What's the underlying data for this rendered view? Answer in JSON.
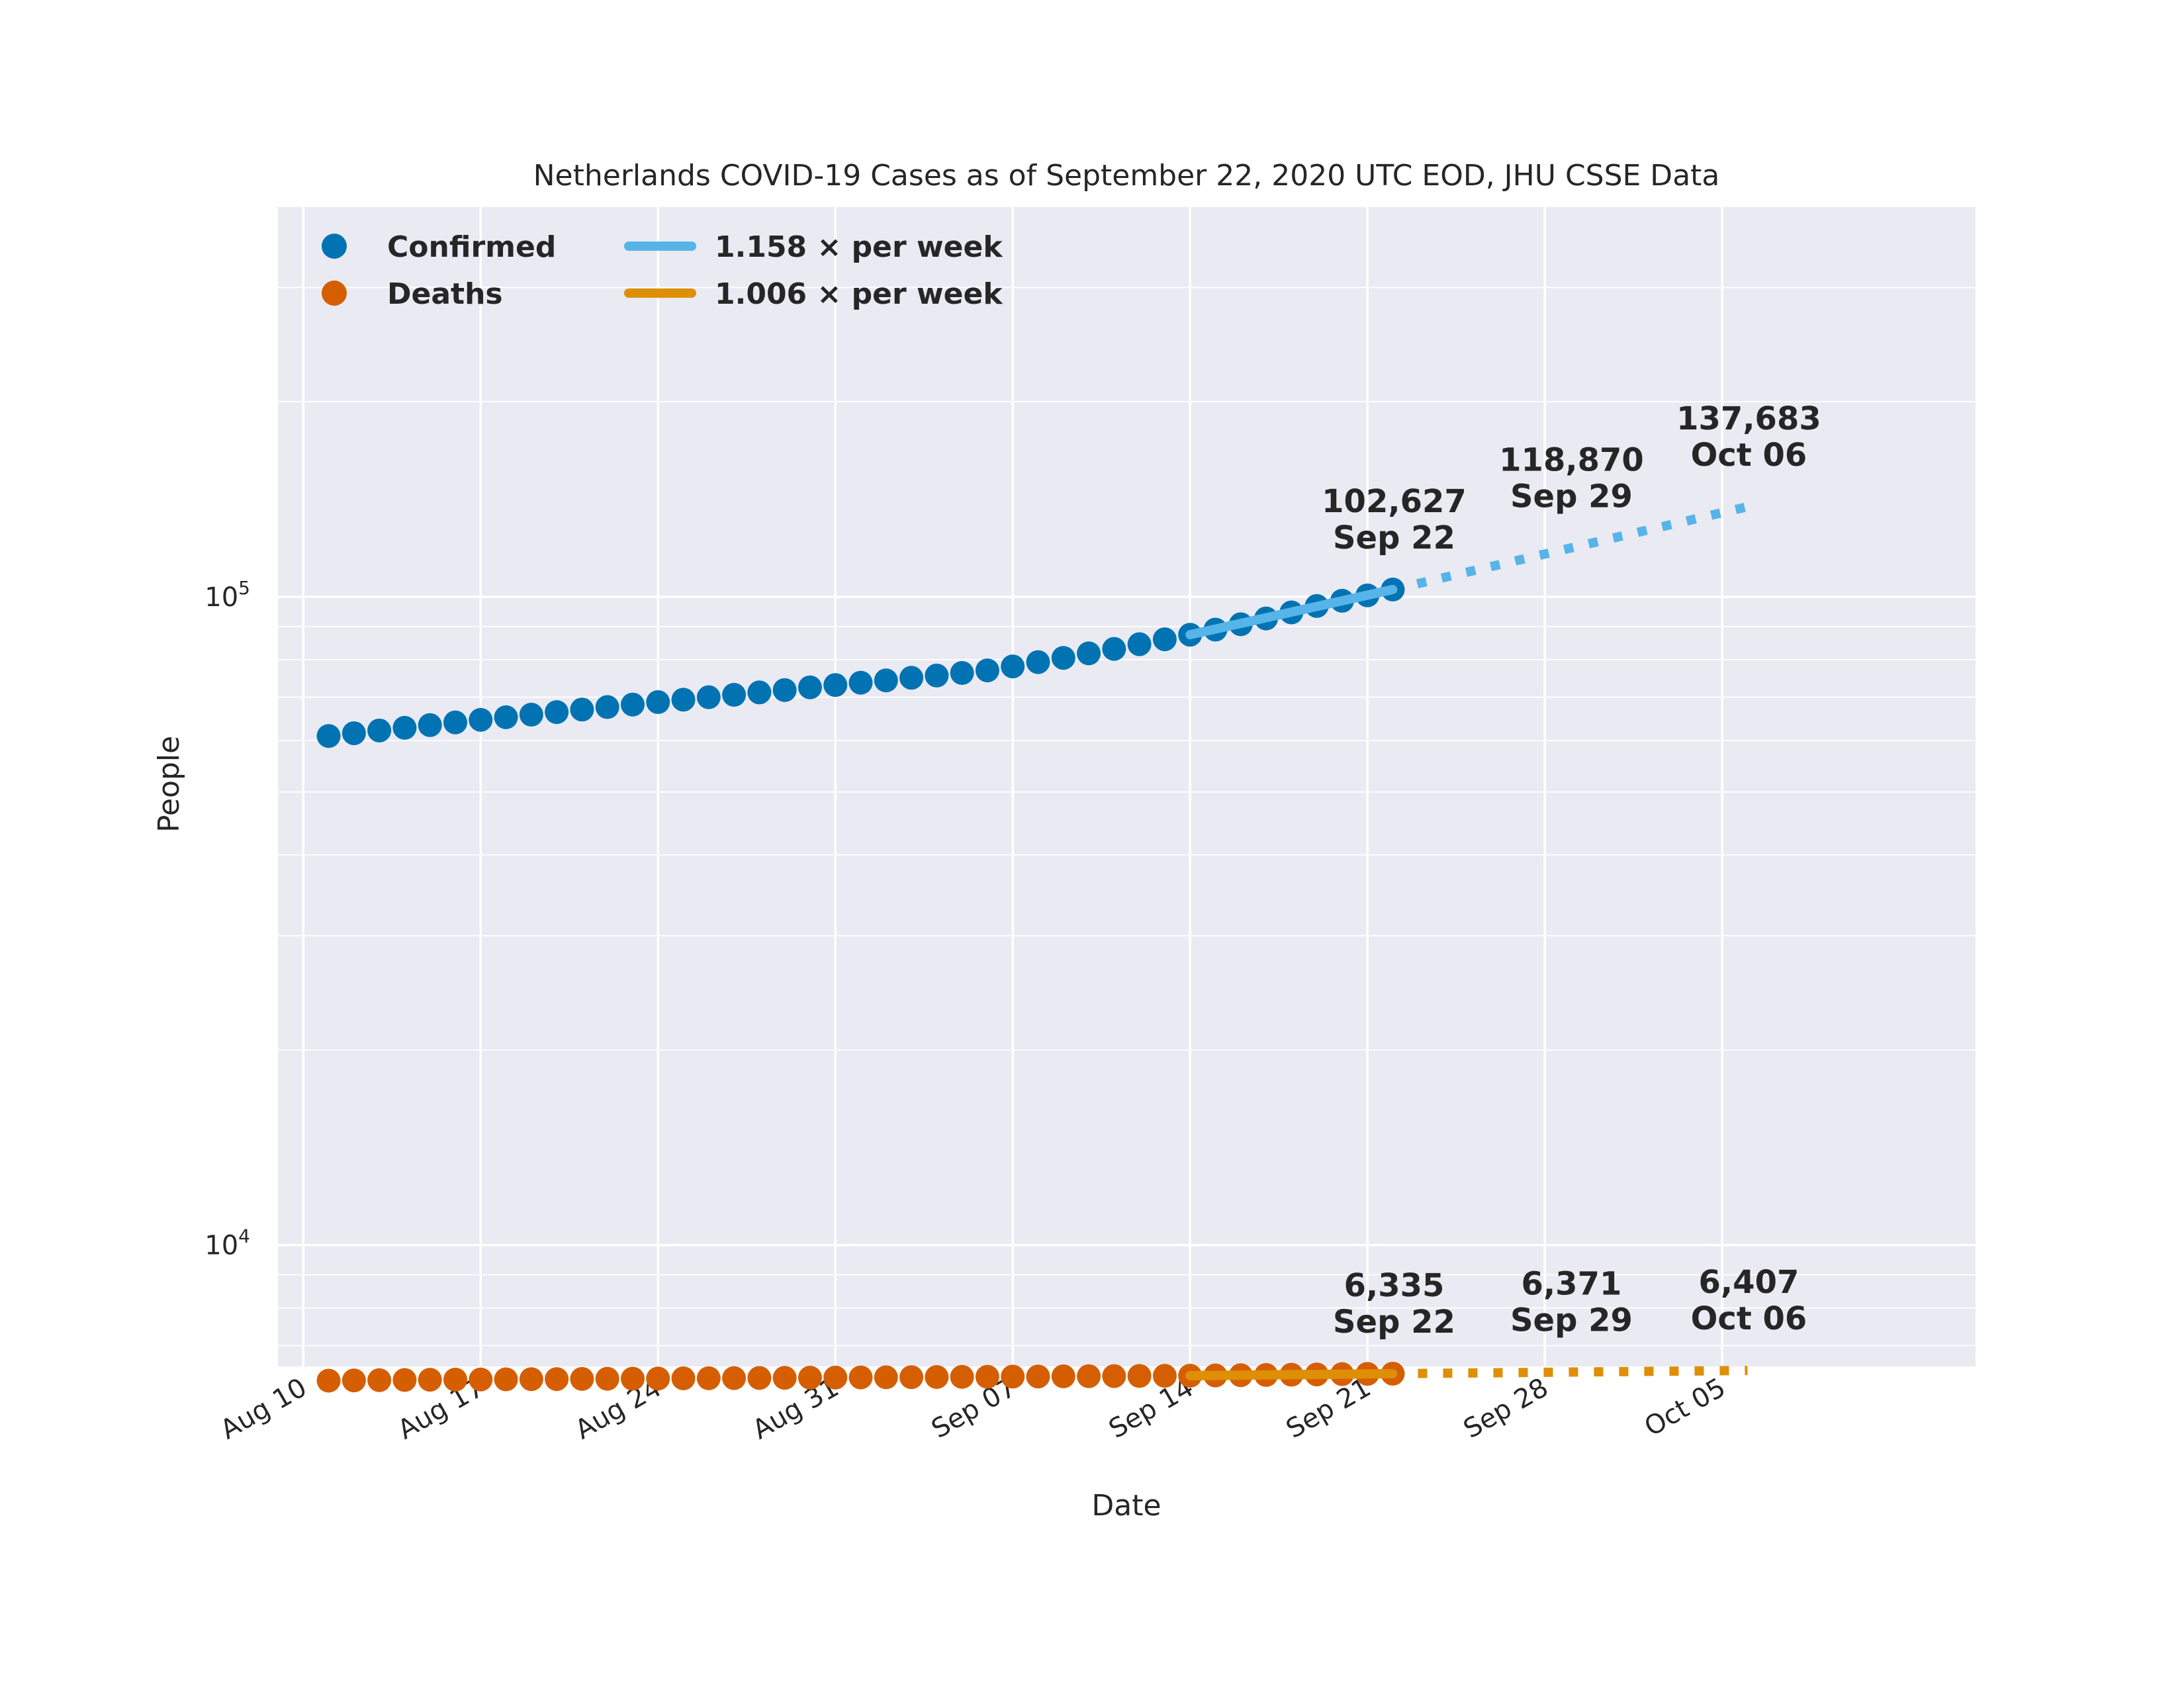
{
  "chart_data": {
    "type": "scatter",
    "title": "Netherlands COVID-19 Cases as of September 22, 2020 UTC EOD, JHU CSSE Data",
    "xlabel": "Date",
    "ylabel": "People",
    "yscale": "log",
    "ylim": [
      6500,
      400000
    ],
    "xlim": [
      "2020-08-09",
      "2020-10-15"
    ],
    "grid": true,
    "legend_position": "top-left",
    "x_ticks": [
      "Aug 10",
      "Aug 17",
      "Aug 24",
      "Aug 31",
      "Sep 07",
      "Sep 14",
      "Sep 21",
      "Sep 28",
      "Oct 05"
    ],
    "x_tick_dates": [
      "2020-08-10",
      "2020-08-17",
      "2020-08-24",
      "2020-08-31",
      "2020-09-07",
      "2020-09-14",
      "2020-09-21",
      "2020-09-28",
      "2020-10-05"
    ],
    "y_ticks": [
      {
        "base": "10",
        "exp": "4",
        "value": 10000
      },
      {
        "base": "10",
        "exp": "5",
        "value": 100000
      }
    ],
    "series": [
      {
        "name": "Confirmed",
        "kind": "points",
        "color": "#0173b2",
        "x": [
          "2020-08-11",
          "2020-08-12",
          "2020-08-13",
          "2020-08-14",
          "2020-08-15",
          "2020-08-16",
          "2020-08-17",
          "2020-08-18",
          "2020-08-19",
          "2020-08-20",
          "2020-08-21",
          "2020-08-22",
          "2020-08-23",
          "2020-08-24",
          "2020-08-25",
          "2020-08-26",
          "2020-08-27",
          "2020-08-28",
          "2020-08-29",
          "2020-08-30",
          "2020-08-31",
          "2020-09-01",
          "2020-09-02",
          "2020-09-03",
          "2020-09-04",
          "2020-09-05",
          "2020-09-06",
          "2020-09-07",
          "2020-09-08",
          "2020-09-09",
          "2020-09-10",
          "2020-09-11",
          "2020-09-12",
          "2020-09-13",
          "2020-09-14",
          "2020-09-15",
          "2020-09-16",
          "2020-09-17",
          "2020-09-18",
          "2020-09-19",
          "2020-09-20",
          "2020-09-21",
          "2020-09-22"
        ],
        "values": [
          61000,
          61600,
          62200,
          62800,
          63400,
          64000,
          64600,
          65200,
          65800,
          66400,
          67000,
          67600,
          68200,
          68800,
          69400,
          70000,
          70600,
          71200,
          71800,
          72500,
          73100,
          73700,
          74300,
          75000,
          75600,
          76300,
          77000,
          78100,
          79300,
          80500,
          81800,
          83100,
          84500,
          86000,
          87400,
          89000,
          90700,
          92600,
          94600,
          96800,
          98600,
          100500,
          102627
        ]
      },
      {
        "name": "Deaths",
        "kind": "points",
        "color": "#d55e00",
        "x": [
          "2020-08-11",
          "2020-08-12",
          "2020-08-13",
          "2020-08-14",
          "2020-08-15",
          "2020-08-16",
          "2020-08-17",
          "2020-08-18",
          "2020-08-19",
          "2020-08-20",
          "2020-08-21",
          "2020-08-22",
          "2020-08-23",
          "2020-08-24",
          "2020-08-25",
          "2020-08-26",
          "2020-08-27",
          "2020-08-28",
          "2020-08-29",
          "2020-08-30",
          "2020-08-31",
          "2020-09-01",
          "2020-09-02",
          "2020-09-03",
          "2020-09-04",
          "2020-09-05",
          "2020-09-06",
          "2020-09-07",
          "2020-09-08",
          "2020-09-09",
          "2020-09-10",
          "2020-09-11",
          "2020-09-12",
          "2020-09-13",
          "2020-09-14",
          "2020-09-15",
          "2020-09-16",
          "2020-09-17",
          "2020-09-18",
          "2020-09-19",
          "2020-09-20",
          "2020-09-21",
          "2020-09-22"
        ],
        "values": [
          6180,
          6185,
          6190,
          6195,
          6200,
          6203,
          6206,
          6209,
          6212,
          6215,
          6218,
          6221,
          6224,
          6227,
          6230,
          6233,
          6236,
          6239,
          6242,
          6245,
          6248,
          6251,
          6254,
          6257,
          6260,
          6263,
          6266,
          6269,
          6272,
          6275,
          6278,
          6281,
          6284,
          6287,
          6290,
          6295,
          6300,
          6306,
          6312,
          6318,
          6324,
          6330,
          6335
        ]
      },
      {
        "name": "1.158 × per week",
        "kind": "fit",
        "color": "#56b4e9",
        "fit_x": [
          "2020-09-14",
          "2020-09-22"
        ],
        "fit_values": [
          87400,
          102627
        ],
        "projection_x": [
          "2020-09-22",
          "2020-10-06"
        ],
        "projection_values": [
          102627,
          137683
        ]
      },
      {
        "name": "1.006 × per week",
        "kind": "fit",
        "color": "#de8f05",
        "fit_x": [
          "2020-09-14",
          "2020-09-22"
        ],
        "fit_values": [
          6290,
          6335
        ],
        "projection_x": [
          "2020-09-22",
          "2020-10-06"
        ],
        "projection_values": [
          6335,
          6407
        ]
      }
    ],
    "annotations": [
      {
        "x": "2020-09-22",
        "y": 102627,
        "value": "102,627",
        "date": "Sep 22"
      },
      {
        "x": "2020-09-29",
        "y": 118870,
        "value": "118,870",
        "date": "Sep 29"
      },
      {
        "x": "2020-10-06",
        "y": 137683,
        "value": "137,683",
        "date": "Oct 06"
      },
      {
        "x": "2020-09-22",
        "y": 6335,
        "value": "6,335",
        "date": "Sep 22"
      },
      {
        "x": "2020-09-29",
        "y": 6371,
        "value": "6,371",
        "date": "Sep 29"
      },
      {
        "x": "2020-10-06",
        "y": 6407,
        "value": "6,407",
        "date": "Oct 06"
      }
    ]
  }
}
